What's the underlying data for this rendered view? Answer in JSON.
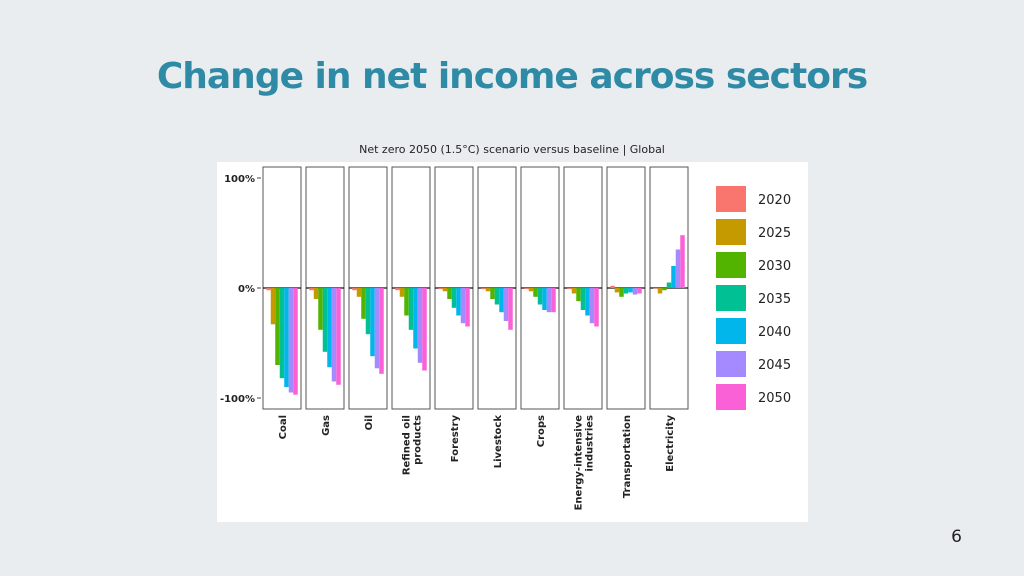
{
  "slide": {
    "title": "Change in net income across sectors",
    "caption": "Net zero 2050 (1.5°C) scenario versus baseline | Global",
    "page_number": "6"
  },
  "chart_data": {
    "type": "bar",
    "categories": [
      "Coal",
      "Gas",
      "Oil",
      "Refined oil products",
      "Forestry",
      "Livestock",
      "Crops",
      "Energy-intensive industries",
      "Transportation",
      "Electricity"
    ],
    "category_tick_labels": [
      [
        "Coal"
      ],
      [
        "Gas"
      ],
      [
        "Oil"
      ],
      [
        "Refined oil",
        "products"
      ],
      [
        "Forestry"
      ],
      [
        "Livestock"
      ],
      [
        "Crops"
      ],
      [
        "Energy-intensive",
        "industries"
      ],
      [
        "Transportation"
      ],
      [
        "Electricity"
      ]
    ],
    "y_tick_labels": [
      "100%",
      "0%",
      "-100%"
    ],
    "y_ticks": [
      100,
      0,
      -100
    ],
    "ylim": [
      -110,
      110
    ],
    "unit": "%",
    "legend_position": "right",
    "series": [
      {
        "name": "2020",
        "color": "#f8766d",
        "values": [
          -2,
          -2,
          -2,
          -2,
          -1,
          -1,
          -1,
          -1,
          2,
          0
        ]
      },
      {
        "name": "2025",
        "color": "#c49a00",
        "values": [
          -33,
          -10,
          -8,
          -8,
          -3,
          -3,
          -3,
          -5,
          -4,
          -5
        ]
      },
      {
        "name": "2030",
        "color": "#53b400",
        "values": [
          -70,
          -38,
          -28,
          -25,
          -10,
          -10,
          -8,
          -12,
          -8,
          -2
        ]
      },
      {
        "name": "2035",
        "color": "#00c094",
        "values": [
          -82,
          -58,
          -42,
          -38,
          -18,
          -15,
          -15,
          -20,
          -5,
          5
        ]
      },
      {
        "name": "2040",
        "color": "#00b6eb",
        "values": [
          -90,
          -72,
          -62,
          -55,
          -25,
          -22,
          -20,
          -25,
          -4,
          20
        ]
      },
      {
        "name": "2045",
        "color": "#a58aff",
        "values": [
          -95,
          -85,
          -73,
          -68,
          -32,
          -30,
          -22,
          -32,
          -6,
          35
        ]
      },
      {
        "name": "2050",
        "color": "#fb61d7",
        "values": [
          -97,
          -88,
          -78,
          -75,
          -35,
          -38,
          -22,
          -35,
          -5,
          48
        ]
      }
    ]
  }
}
